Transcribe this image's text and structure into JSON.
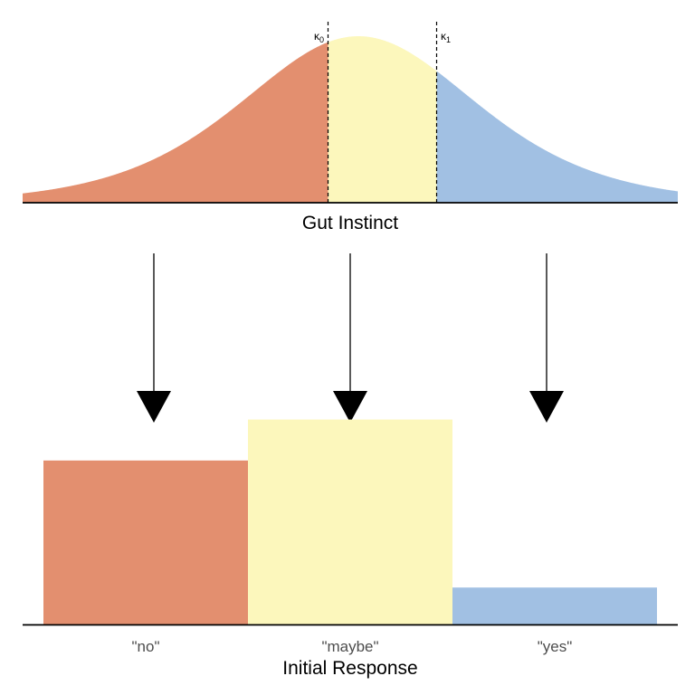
{
  "top_panel": {
    "xlabel": "Gut Instinct",
    "thresholds": [
      {
        "symbol": "κ",
        "subscript": "0"
      },
      {
        "symbol": "κ",
        "subscript": "1"
      }
    ]
  },
  "bottom_panel": {
    "xlabel": "Initial Response"
  },
  "colors": {
    "no": "#E38F6F",
    "maybe": "#FCF7BC",
    "yes": "#A1C0E3",
    "axis": "#000000",
    "arrow": "#000000"
  },
  "chart_data": {
    "type": "bar",
    "categories": [
      "\"no\"",
      "\"maybe\"",
      "\"yes\""
    ],
    "values": [
      0.4,
      0.5,
      0.09
    ],
    "ylim": [
      0,
      0.53
    ],
    "xlabel": "Initial Response"
  }
}
